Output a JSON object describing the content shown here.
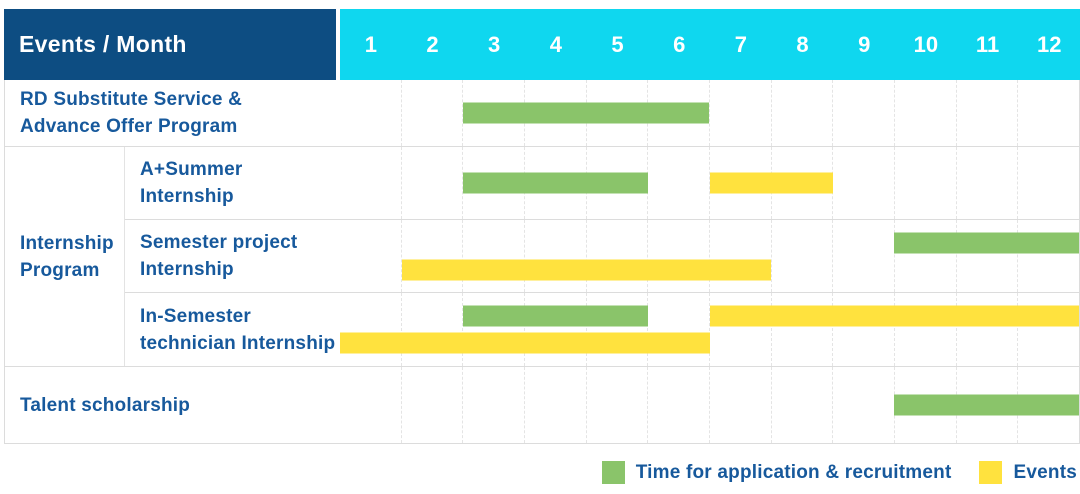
{
  "header": {
    "title": "Events / Month",
    "months": [
      "1",
      "2",
      "3",
      "4",
      "5",
      "6",
      "7",
      "8",
      "9",
      "10",
      "11",
      "12"
    ]
  },
  "colors": {
    "header_bg": "#0d4d82",
    "months_bg": "#0fd7ef",
    "label_text": "#17599c",
    "application_green": "#8ac46a",
    "events_yellow": "#ffe23e"
  },
  "legend": {
    "items": [
      {
        "label": "Time for application & recruitment",
        "series": "application"
      },
      {
        "label": "Events",
        "series": "events"
      }
    ]
  },
  "chart_data": {
    "type": "gantt",
    "x_axis": {
      "label": "Month",
      "ticks": [
        1,
        2,
        3,
        4,
        5,
        6,
        7,
        8,
        9,
        10,
        11,
        12
      ]
    },
    "group_label": "Internship Program",
    "group_label_lines": [
      "Internship",
      "Program"
    ],
    "series": [
      {
        "key": "application",
        "label": "Time for application & recruitment",
        "color": "#8ac46a"
      },
      {
        "key": "events",
        "label": "Events",
        "color": "#ffe23e"
      }
    ],
    "rows": [
      {
        "id": "rd-substitute",
        "group": null,
        "label": "RD Substitute Service & Advance Offer Program",
        "label_lines": [
          "RD Substitute Service &",
          "Advance Offer Program"
        ],
        "bars": [
          {
            "series": "application",
            "start_month": 3,
            "end_month": 6,
            "lane": "center"
          }
        ]
      },
      {
        "id": "a-plus-summer-internship",
        "group": "Internship Program",
        "label": "A+Summer Internship",
        "label_lines": [
          "A+Summer",
          "Internship"
        ],
        "bars": [
          {
            "series": "application",
            "start_month": 3,
            "end_month": 5,
            "lane": "center"
          },
          {
            "series": "events",
            "start_month": 7,
            "end_month": 8,
            "lane": "center"
          }
        ]
      },
      {
        "id": "semester-project-internship",
        "group": "Internship Program",
        "label": "Semester project Internship",
        "label_lines": [
          "Semester project",
          "Internship"
        ],
        "bars": [
          {
            "series": "application",
            "start_month": 10,
            "end_month": 12,
            "lane": "top"
          },
          {
            "series": "events",
            "start_month": 2,
            "end_month": 7,
            "lane": "bottom"
          }
        ]
      },
      {
        "id": "in-semester-technician-internship",
        "group": "Internship Program",
        "label": "In-Semester technician Internship",
        "label_lines": [
          "In-Semester",
          "technician Internship"
        ],
        "bars": [
          {
            "series": "application",
            "start_month": 3,
            "end_month": 5,
            "lane": "top"
          },
          {
            "series": "events",
            "start_month": 7,
            "end_month": 12,
            "lane": "top"
          },
          {
            "series": "events",
            "start_month": 1,
            "end_month": 6,
            "lane": "bottom"
          }
        ]
      },
      {
        "id": "talent-scholarship",
        "group": null,
        "label": "Talent scholarship",
        "label_lines": [
          "Talent scholarship"
        ],
        "bars": [
          {
            "series": "application",
            "start_month": 10,
            "end_month": 12,
            "lane": "center"
          }
        ]
      }
    ]
  }
}
